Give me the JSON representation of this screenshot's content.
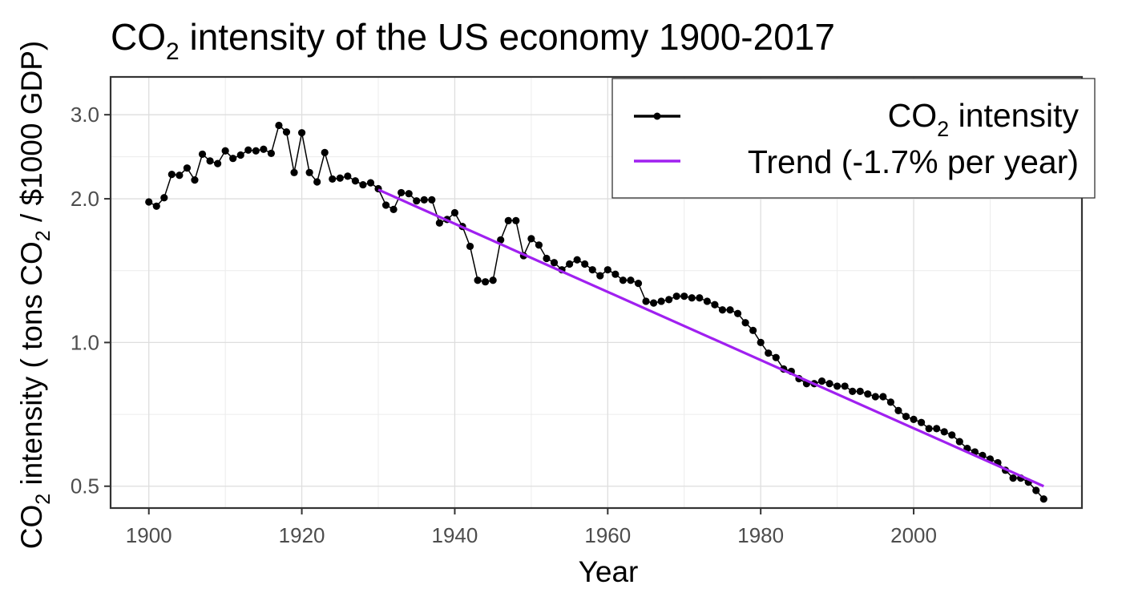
{
  "chart_data": {
    "type": "line",
    "title": {
      "pre": "CO",
      "sub": "2",
      "post": " intensity of the US economy 1900-2017"
    },
    "xlabel": "Year",
    "ylabel": {
      "a": "CO",
      "a_sub": "2",
      "b": " intensity ( tons CO",
      "b_sub": "2",
      "c": " / $1000 GDP)"
    },
    "x_scale": "linear",
    "y_scale": "log",
    "xlim": [
      1895,
      2022
    ],
    "ylim": [
      0.45,
      3.6
    ],
    "x_ticks": [
      1900,
      1920,
      1940,
      1960,
      1980,
      2000
    ],
    "x_tick_labels": [
      "1900",
      "1920",
      "1940",
      "1960",
      "1980",
      "2000"
    ],
    "y_ticks": [
      0.5,
      1.0,
      2.0,
      3.0
    ],
    "y_tick_labels": [
      "0.5",
      "1.0",
      "2.0",
      "3.0"
    ],
    "grid": true,
    "legend_position": "top-right",
    "colors": {
      "series": "#000000",
      "trend": "#a020f0"
    },
    "series": [
      {
        "name": "CO2 intensity",
        "legend": {
          "pre": "CO",
          "sub": "2",
          "post": " intensity"
        },
        "x": [
          1900,
          1901,
          1902,
          1903,
          1904,
          1905,
          1906,
          1907,
          1908,
          1909,
          1910,
          1911,
          1912,
          1913,
          1914,
          1915,
          1916,
          1917,
          1918,
          1919,
          1920,
          1921,
          1922,
          1923,
          1924,
          1925,
          1926,
          1927,
          1928,
          1929,
          1930,
          1931,
          1932,
          1933,
          1934,
          1935,
          1936,
          1937,
          1938,
          1939,
          1940,
          1941,
          1942,
          1943,
          1944,
          1945,
          1946,
          1947,
          1948,
          1949,
          1950,
          1951,
          1952,
          1953,
          1954,
          1955,
          1956,
          1957,
          1958,
          1959,
          1960,
          1961,
          1962,
          1963,
          1964,
          1965,
          1966,
          1967,
          1968,
          1969,
          1970,
          1971,
          1972,
          1973,
          1974,
          1975,
          1976,
          1977,
          1978,
          1979,
          1980,
          1981,
          1982,
          1983,
          1984,
          1985,
          1986,
          1987,
          1988,
          1989,
          1990,
          1991,
          1992,
          1993,
          1994,
          1995,
          1996,
          1997,
          1998,
          1999,
          2000,
          2001,
          2002,
          2003,
          2004,
          2005,
          2006,
          2007,
          2008,
          2009,
          2010,
          2011,
          2012,
          2013,
          2014,
          2015,
          2016,
          2017
        ],
        "y": [
          1.97,
          1.93,
          2.01,
          2.25,
          2.24,
          2.32,
          2.19,
          2.48,
          2.4,
          2.37,
          2.52,
          2.43,
          2.47,
          2.53,
          2.52,
          2.54,
          2.49,
          2.85,
          2.76,
          2.27,
          2.75,
          2.27,
          2.17,
          2.5,
          2.2,
          2.21,
          2.23,
          2.18,
          2.14,
          2.16,
          2.1,
          1.94,
          1.9,
          2.06,
          2.05,
          1.98,
          1.99,
          1.99,
          1.78,
          1.81,
          1.87,
          1.75,
          1.59,
          1.35,
          1.34,
          1.35,
          1.64,
          1.8,
          1.8,
          1.52,
          1.65,
          1.6,
          1.5,
          1.47,
          1.42,
          1.46,
          1.49,
          1.46,
          1.42,
          1.38,
          1.42,
          1.39,
          1.35,
          1.35,
          1.33,
          1.22,
          1.21,
          1.22,
          1.23,
          1.25,
          1.25,
          1.24,
          1.24,
          1.22,
          1.2,
          1.17,
          1.17,
          1.15,
          1.1,
          1.06,
          1.0,
          0.95,
          0.93,
          0.88,
          0.87,
          0.84,
          0.82,
          0.82,
          0.83,
          0.82,
          0.81,
          0.81,
          0.79,
          0.79,
          0.78,
          0.77,
          0.77,
          0.75,
          0.72,
          0.7,
          0.69,
          0.68,
          0.66,
          0.66,
          0.65,
          0.64,
          0.62,
          0.6,
          0.59,
          0.58,
          0.57,
          0.56,
          0.54,
          0.52,
          0.52,
          0.51,
          0.49,
          0.47
        ]
      },
      {
        "name": "Trend (-1.7% per year)",
        "legend": {
          "pre": "Trend (-1.7% per year)",
          "sub": "",
          "post": ""
        },
        "x": [
          1930,
          2017
        ],
        "y": [
          2.09,
          0.5
        ]
      }
    ]
  }
}
